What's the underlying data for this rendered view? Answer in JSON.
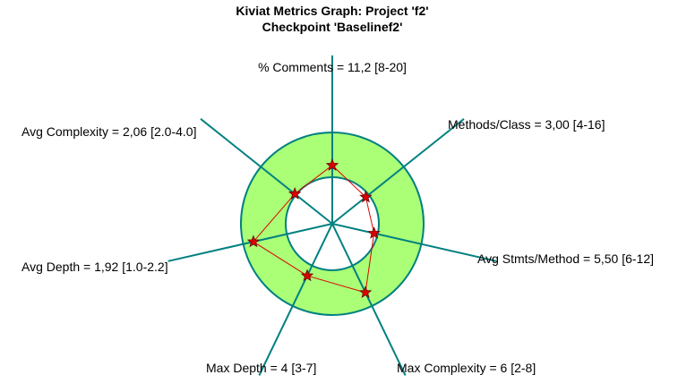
{
  "colors": {
    "background": "#ffffff",
    "band_fill": "#aaff77",
    "band_stroke": "#008080",
    "axis": "#008080",
    "polygon": "#dd0000",
    "marker_fill": "#dd0000",
    "marker_stroke": "#660000",
    "text": "#000000"
  },
  "chart_data": {
    "type": "radar",
    "title": "Kiviat Metrics Graph: Project 'f2'",
    "subtitle": "Checkpoint 'Baselinef2'",
    "metrics": [
      {
        "label": "% Comments = 11,2 [8-20]",
        "name": "% Comments",
        "value": 11.2,
        "min": 8,
        "max": 20
      },
      {
        "label": "Methods/Class = 3,00 [4-16]",
        "name": "Methods/Class",
        "value": 3.0,
        "min": 4,
        "max": 16
      },
      {
        "label": "Avg Stmts/Method = 5,50 [6-12]",
        "name": "Avg Stmts/Method",
        "value": 5.5,
        "min": 6,
        "max": 12
      },
      {
        "label": "Max Complexity = 6 [2-8]",
        "name": "Max Complexity",
        "value": 6,
        "min": 2,
        "max": 8
      },
      {
        "label": "Max Depth = 4 [3-7]",
        "name": "Max Depth",
        "value": 4,
        "min": 3,
        "max": 7
      },
      {
        "label": "Avg Depth = 1,92 [1.0-2.2]",
        "name": "Avg Depth",
        "value": 1.92,
        "min": 1.0,
        "max": 2.2
      },
      {
        "label": "Avg Complexity = 2,06 [2.0-4.0]",
        "name": "Avg Complexity",
        "value": 2.06,
        "min": 2.0,
        "max": 4.0
      }
    ]
  }
}
